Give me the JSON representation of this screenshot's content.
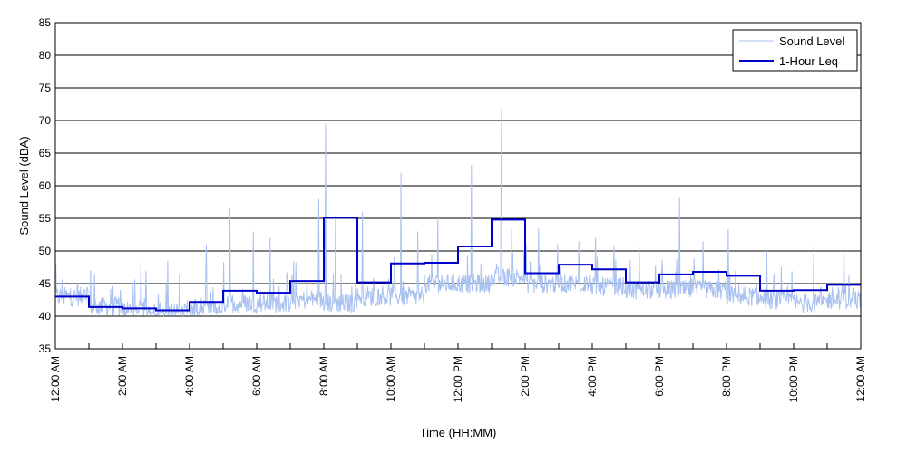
{
  "chart_data": {
    "type": "line",
    "xlabel": "Time (HH:MM)",
    "ylabel": "Sound Level (dBA)",
    "ylim": [
      35,
      85
    ],
    "yticks": [
      35,
      40,
      45,
      50,
      55,
      60,
      65,
      70,
      75,
      80,
      85
    ],
    "xlim_hours": [
      0,
      24
    ],
    "xtick_labels": [
      {
        "hour": 0,
        "label": "12:00 AM"
      },
      {
        "hour": 2,
        "label": "2:00 AM"
      },
      {
        "hour": 4,
        "label": "4:00 AM"
      },
      {
        "hour": 6,
        "label": "6:00 AM"
      },
      {
        "hour": 8,
        "label": "8:00 AM"
      },
      {
        "hour": 10,
        "label": "10:00 AM"
      },
      {
        "hour": 12,
        "label": "12:00 PM"
      },
      {
        "hour": 14,
        "label": "2:00 PM"
      },
      {
        "hour": 16,
        "label": "4:00 PM"
      },
      {
        "hour": 18,
        "label": "6:00 PM"
      },
      {
        "hour": 20,
        "label": "8:00 PM"
      },
      {
        "hour": 22,
        "label": "10:00 PM"
      },
      {
        "hour": 24,
        "label": "12:00 AM"
      }
    ],
    "grid": "horizontal",
    "legend_position": "top-right",
    "series": [
      {
        "name": "Sound Level",
        "color": "#a9c1f0",
        "style": "thin line",
        "baseline_by_hour": [
          43,
          41.5,
          41,
          40.5,
          41,
          42,
          42,
          42.5,
          42,
          43,
          43,
          45,
          45,
          46,
          45,
          45,
          44.5,
          44,
          44,
          44,
          43,
          42.5,
          42,
          42.5
        ],
        "spikes": [
          {
            "hour": 8.05,
            "value": 69.5
          },
          {
            "hour": 13.3,
            "value": 71.8
          },
          {
            "hour": 12.4,
            "value": 63.2
          },
          {
            "hour": 13.28,
            "value": 61.5
          },
          {
            "hour": 10.3,
            "value": 62.0
          },
          {
            "hour": 18.6,
            "value": 58.3
          },
          {
            "hour": 7.85,
            "value": 58.0
          },
          {
            "hour": 5.2,
            "value": 56.5
          },
          {
            "hour": 5.9,
            "value": 53.0
          },
          {
            "hour": 8.35,
            "value": 55.5
          },
          {
            "hour": 9.15,
            "value": 56.0
          },
          {
            "hour": 11.4,
            "value": 55.0
          },
          {
            "hour": 13.6,
            "value": 53.5
          },
          {
            "hour": 16.1,
            "value": 52.0
          },
          {
            "hour": 20.05,
            "value": 53.3
          },
          {
            "hour": 1.05,
            "value": 47.0
          },
          {
            "hour": 2.55,
            "value": 48.3
          },
          {
            "hour": 3.7,
            "value": 46.5
          },
          {
            "hour": 4.5,
            "value": 51.0
          },
          {
            "hour": 6.4,
            "value": 52.0
          },
          {
            "hour": 10.8,
            "value": 53.0
          },
          {
            "hour": 14.4,
            "value": 53.5
          },
          {
            "hour": 15.6,
            "value": 51.5
          },
          {
            "hour": 17.4,
            "value": 50.5
          },
          {
            "hour": 19.3,
            "value": 51.5
          },
          {
            "hour": 21.2,
            "value": 50.0
          },
          {
            "hour": 22.6,
            "value": 50.5
          },
          {
            "hour": 23.5,
            "value": 51.0
          }
        ]
      },
      {
        "name": "1-Hour Leq",
        "color": "#0000cc",
        "style": "step",
        "values": [
          43.0,
          41.4,
          41.2,
          40.9,
          42.2,
          43.9,
          43.6,
          45.4,
          55.1,
          45.2,
          48.1,
          48.2,
          50.7,
          54.8,
          46.6,
          47.9,
          47.2,
          45.2,
          46.4,
          46.8,
          46.2,
          43.9,
          44.0,
          44.8
        ]
      }
    ]
  }
}
